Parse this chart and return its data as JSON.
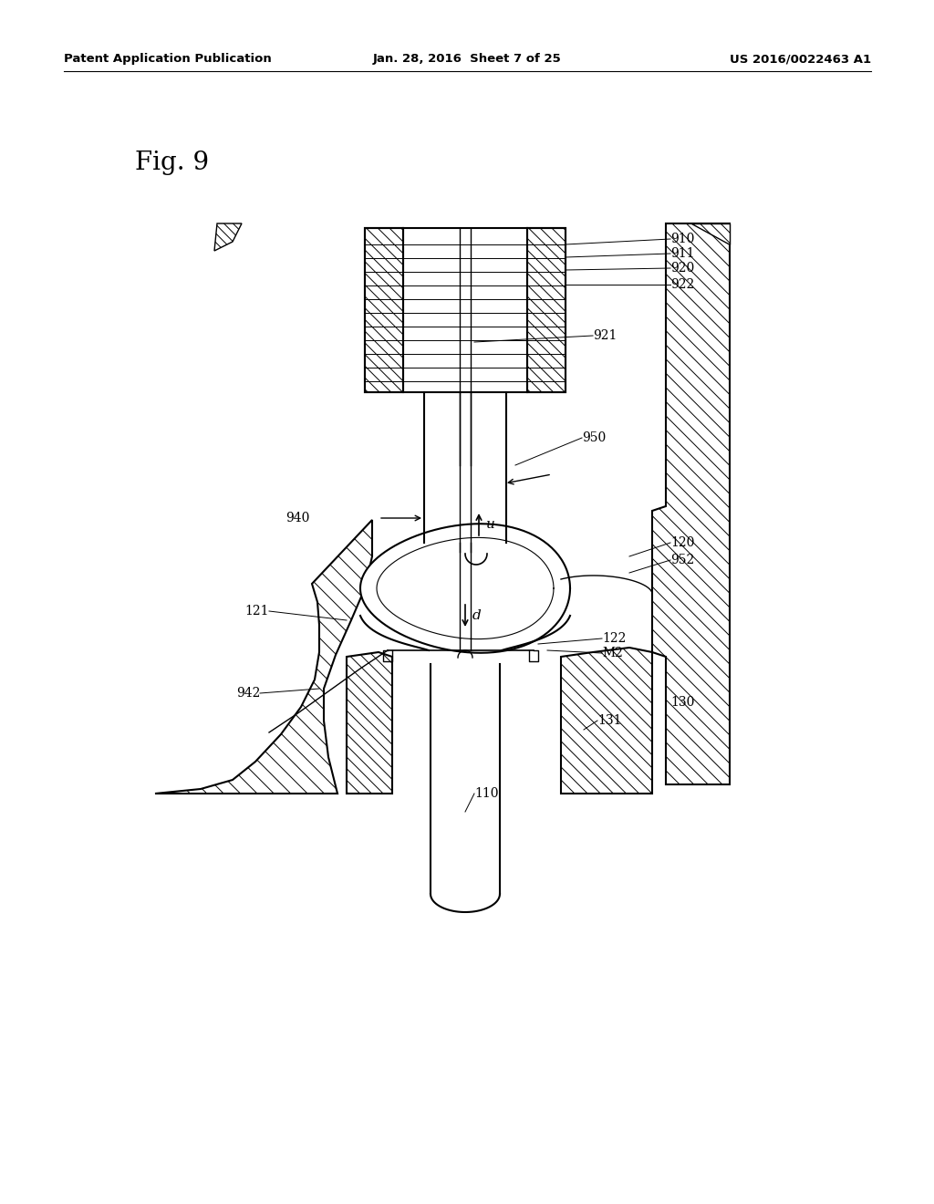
{
  "header_left": "Patent Application Publication",
  "header_center": "Jan. 28, 2016  Sheet 7 of 25",
  "header_right": "US 2016/0022463 A1",
  "fig_label": "Fig. 9",
  "bg_color": "#ffffff",
  "lc": "#000000"
}
